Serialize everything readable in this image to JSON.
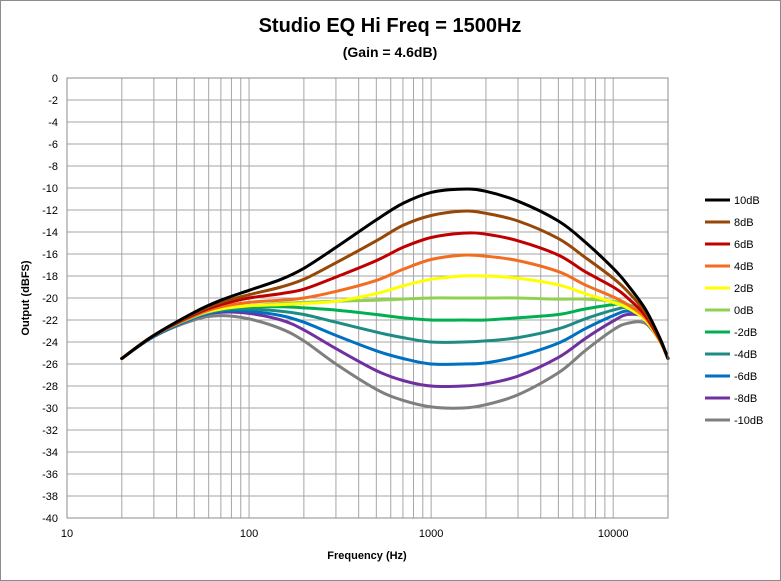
{
  "chart_data": {
    "type": "line",
    "title": "Studio EQ Hi Freq = 1500Hz",
    "subtitle": "(Gain = 4.6dB)",
    "xlabel": "Frequency (Hz)",
    "ylabel": "Output (dBFS)",
    "x_scale": "log",
    "xlim": [
      10,
      20000
    ],
    "ylim": [
      -40,
      0
    ],
    "x_ticks": [
      10,
      100,
      1000,
      10000
    ],
    "y_ticks": [
      0,
      -2,
      -4,
      -6,
      -8,
      -10,
      -12,
      -14,
      -16,
      -18,
      -20,
      -22,
      -24,
      -26,
      -28,
      -30,
      -32,
      -34,
      -36,
      -38,
      -40
    ],
    "grid": true,
    "legend_position": "right",
    "x": [
      20,
      30,
      50,
      70,
      100,
      150,
      200,
      300,
      500,
      700,
      1000,
      1500,
      2000,
      3000,
      5000,
      7000,
      10000,
      12000,
      15000,
      18000,
      20000
    ],
    "series": [
      {
        "name": "10dB",
        "color": "#000000",
        "values": [
          -25.5,
          -23.4,
          -21.3,
          -20.2,
          -19.3,
          -18.3,
          -17.3,
          -15.4,
          -12.9,
          -11.4,
          -10.4,
          -10.1,
          -10.3,
          -11.2,
          -13.0,
          -14.9,
          -17.3,
          -18.8,
          -21.0,
          -23.6,
          -25.5
        ]
      },
      {
        "name": "8dB",
        "color": "#974706",
        "values": [
          -25.5,
          -23.4,
          -21.4,
          -20.4,
          -19.7,
          -19.0,
          -18.3,
          -16.8,
          -14.8,
          -13.4,
          -12.5,
          -12.1,
          -12.3,
          -13.0,
          -14.6,
          -16.3,
          -18.2,
          -19.4,
          -21.3,
          -23.7,
          -25.5
        ]
      },
      {
        "name": "6dB",
        "color": "#c00000",
        "values": [
          -25.5,
          -23.4,
          -21.5,
          -20.6,
          -20.0,
          -19.6,
          -19.2,
          -18.1,
          -16.6,
          -15.4,
          -14.5,
          -14.1,
          -14.2,
          -14.8,
          -16.1,
          -17.6,
          -19.0,
          -20.0,
          -21.6,
          -23.8,
          -25.5
        ]
      },
      {
        "name": "4dB",
        "color": "#f26d21",
        "values": [
          -25.5,
          -23.4,
          -21.6,
          -20.8,
          -20.4,
          -20.2,
          -20.0,
          -19.4,
          -18.4,
          -17.4,
          -16.5,
          -16.1,
          -16.2,
          -16.6,
          -17.6,
          -18.8,
          -19.9,
          -20.6,
          -21.8,
          -23.8,
          -25.5
        ]
      },
      {
        "name": "2dB",
        "color": "#ffff00",
        "values": [
          -25.5,
          -23.4,
          -21.6,
          -21.0,
          -20.7,
          -20.6,
          -20.5,
          -20.3,
          -19.6,
          -18.9,
          -18.3,
          -18.0,
          -18.0,
          -18.2,
          -18.8,
          -19.6,
          -20.4,
          -20.9,
          -22.0,
          -23.9,
          -25.5
        ]
      },
      {
        "name": "0dB",
        "color": "#92d050",
        "values": [
          -25.5,
          -23.4,
          -21.7,
          -21.0,
          -20.7,
          -20.5,
          -20.4,
          -20.3,
          -20.2,
          -20.1,
          -20.0,
          -20.0,
          -20.0,
          -20.0,
          -20.1,
          -20.1,
          -20.3,
          -20.6,
          -21.6,
          -23.8,
          -25.5
        ]
      },
      {
        "name": "-2dB",
        "color": "#00b050",
        "values": [
          -25.5,
          -23.4,
          -21.7,
          -21.0,
          -20.8,
          -20.8,
          -20.9,
          -21.1,
          -21.5,
          -21.8,
          -22.0,
          -22.0,
          -22.0,
          -21.8,
          -21.5,
          -21.0,
          -20.6,
          -20.6,
          -21.5,
          -23.8,
          -25.5
        ]
      },
      {
        "name": "-4dB",
        "color": "#1e8c85",
        "values": [
          -25.5,
          -23.4,
          -21.7,
          -21.1,
          -21.0,
          -21.2,
          -21.5,
          -22.2,
          -23.1,
          -23.6,
          -24.0,
          -24.0,
          -23.9,
          -23.6,
          -22.8,
          -21.9,
          -21.1,
          -20.9,
          -21.6,
          -23.8,
          -25.5
        ]
      },
      {
        "name": "-6dB",
        "color": "#0070c0",
        "values": [
          -25.5,
          -23.5,
          -21.8,
          -21.2,
          -21.2,
          -21.6,
          -22.2,
          -23.4,
          -24.8,
          -25.5,
          -26.0,
          -26.0,
          -25.9,
          -25.3,
          -24.1,
          -22.8,
          -21.6,
          -21.2,
          -21.7,
          -23.8,
          -25.5
        ]
      },
      {
        "name": "-8dB",
        "color": "#7030a0",
        "values": [
          -25.5,
          -23.5,
          -21.8,
          -21.3,
          -21.4,
          -22.0,
          -22.9,
          -24.6,
          -26.6,
          -27.5,
          -28.0,
          -28.0,
          -27.8,
          -27.1,
          -25.4,
          -23.7,
          -22.1,
          -21.5,
          -21.8,
          -23.8,
          -25.5
        ]
      },
      {
        "name": "-10dB",
        "color": "#7f7f7f",
        "values": [
          -25.5,
          -23.5,
          -22.0,
          -21.6,
          -21.9,
          -22.8,
          -23.9,
          -26.0,
          -28.3,
          -29.3,
          -29.9,
          -30.0,
          -29.7,
          -28.8,
          -26.8,
          -24.8,
          -22.9,
          -22.3,
          -22.3,
          -23.9,
          -25.5
        ]
      }
    ]
  }
}
